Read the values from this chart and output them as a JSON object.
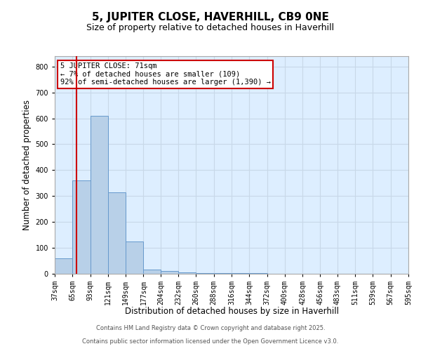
{
  "title": "5, JUPITER CLOSE, HAVERHILL, CB9 0NE",
  "subtitle": "Size of property relative to detached houses in Haverhill",
  "xlabel": "Distribution of detached houses by size in Haverhill",
  "ylabel": "Number of detached properties",
  "bin_labels": [
    "37sqm",
    "65sqm",
    "93sqm",
    "121sqm",
    "149sqm",
    "177sqm",
    "204sqm",
    "232sqm",
    "260sqm",
    "288sqm",
    "316sqm",
    "344sqm",
    "372sqm",
    "400sqm",
    "428sqm",
    "456sqm",
    "483sqm",
    "511sqm",
    "539sqm",
    "567sqm",
    "595sqm"
  ],
  "bin_edges": [
    37,
    65,
    93,
    121,
    149,
    177,
    204,
    232,
    260,
    288,
    316,
    344,
    372,
    400,
    428,
    456,
    483,
    511,
    539,
    567,
    595
  ],
  "bar_values": [
    60,
    360,
    610,
    315,
    125,
    15,
    10,
    6,
    4,
    3,
    2,
    2,
    1,
    1,
    1,
    1,
    1,
    1,
    1,
    1
  ],
  "bar_color": "#b8d0e8",
  "bar_edge_color": "#6699cc",
  "grid_color": "#c8d8e8",
  "background_color": "#ddeeff",
  "vline_x": 71,
  "vline_color": "#cc0000",
  "annotation_text": "5 JUPITER CLOSE: 71sqm\n← 7% of detached houses are smaller (109)\n92% of semi-detached houses are larger (1,390) →",
  "annotation_box_color": "#ffffff",
  "annotation_box_edge": "#cc0000",
  "ylim": [
    0,
    840
  ],
  "yticks": [
    0,
    100,
    200,
    300,
    400,
    500,
    600,
    700,
    800
  ],
  "footer1": "Contains HM Land Registry data © Crown copyright and database right 2025.",
  "footer2": "Contains public sector information licensed under the Open Government Licence v3.0.",
  "title_fontsize": 11,
  "subtitle_fontsize": 9,
  "tick_fontsize": 7,
  "ylabel_fontsize": 8.5,
  "xlabel_fontsize": 8.5,
  "annotation_fontsize": 7.5,
  "footer_fontsize": 6
}
